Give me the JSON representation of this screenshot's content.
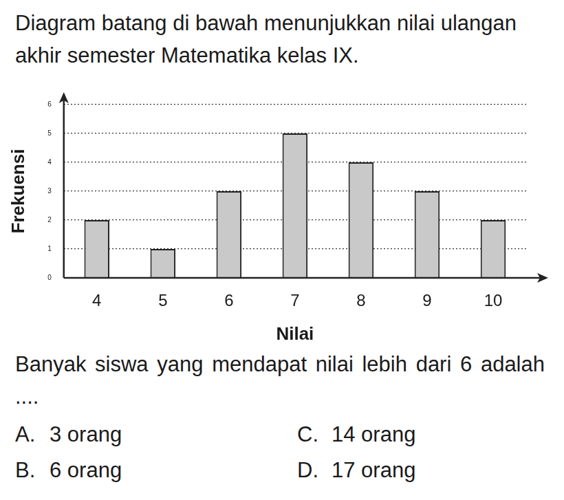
{
  "intro": "Diagram batang di bawah menunjukkan nilai ulangan akhir semester Matematika kelas IX.",
  "chart_data": {
    "type": "bar",
    "x_label": "Nilai",
    "y_label": "Frekuensi",
    "categories": [
      "4",
      "5",
      "6",
      "7",
      "8",
      "9",
      "10"
    ],
    "values": [
      2,
      1,
      3,
      5,
      4,
      3,
      2
    ],
    "color": "#c9c9c9",
    "ylim": [
      0,
      6
    ],
    "yticks": [
      0,
      1,
      2,
      3,
      4,
      5,
      6
    ],
    "grid": true
  },
  "question": "Banyak siswa yang mendapat nilai lebih dari 6 adalah ....",
  "options": [
    {
      "letter": "A.",
      "text": "3 orang"
    },
    {
      "letter": "B.",
      "text": "6 orang"
    },
    {
      "letter": "C.",
      "text": "14 orang"
    },
    {
      "letter": "D.",
      "text": "17 orang"
    }
  ]
}
